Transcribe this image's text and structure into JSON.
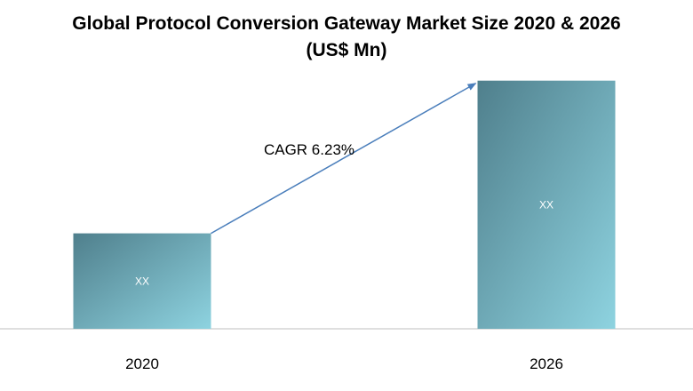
{
  "chart_data": {
    "type": "bar",
    "title_line1": "Global Protocol Conversion Gateway Market Size 2020 & 2026",
    "title_line2": "(US$ Mn)",
    "categories": [
      "2020",
      "2026"
    ],
    "values": [
      1,
      2.6
    ],
    "data_labels": [
      "XX",
      "XX"
    ],
    "annotation": "CAGR 6.23%",
    "ylim": [
      0,
      2.7
    ],
    "grid": false,
    "legend": "none",
    "colors": {
      "bar_dark": "#4f7f8c",
      "bar_light": "#8ed3e0",
      "arrow": "#4a7ebb",
      "axis": "#bfbfbf",
      "label": "#ffffff"
    }
  }
}
